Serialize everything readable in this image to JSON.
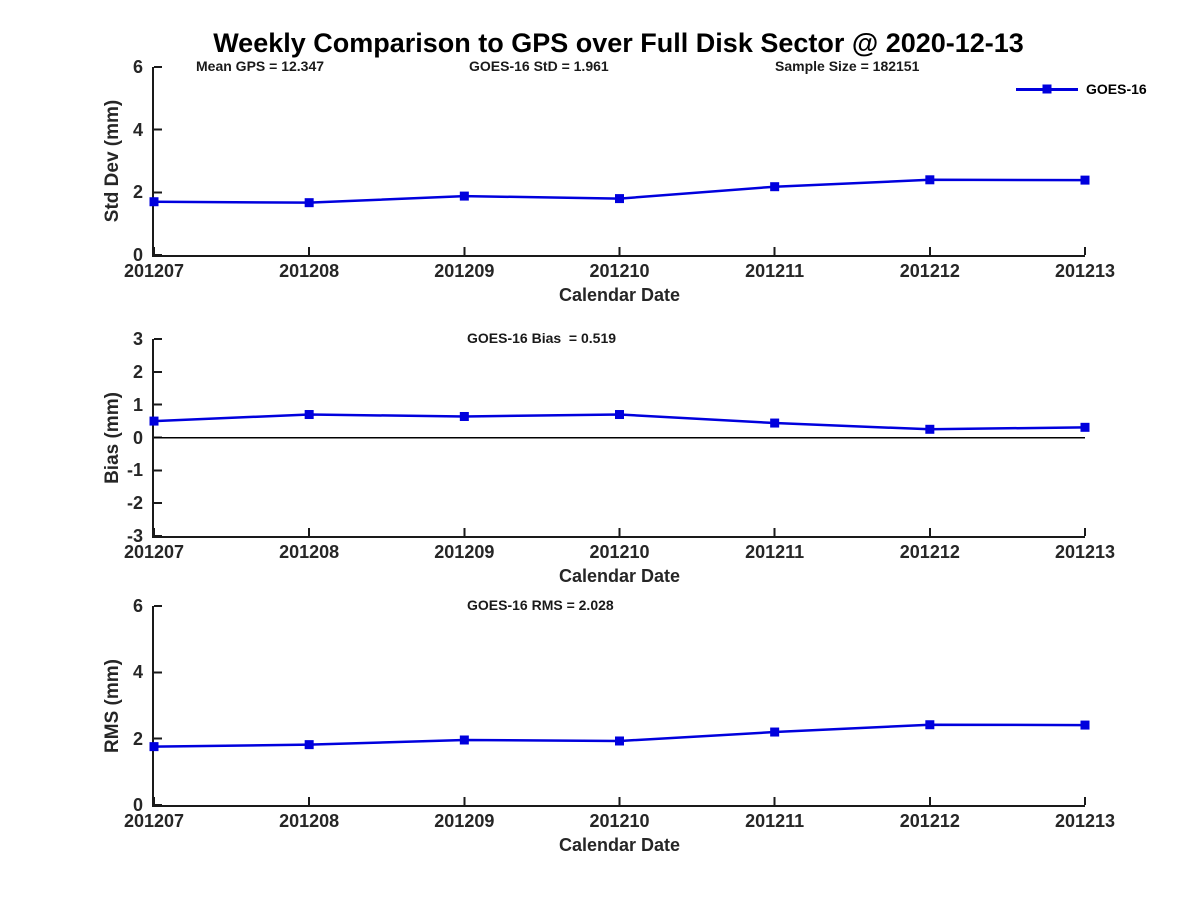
{
  "figure_title": "Weekly Comparison to GPS over Full Disk Sector @ 2020-12-13",
  "colors": {
    "series_blue": "#0000dd",
    "axis": "#1a1a1a",
    "zero_line": "#000000"
  },
  "legend": {
    "label": "GOES-16"
  },
  "chart_data": [
    {
      "type": "line",
      "ylabel": "Std Dev (mm)",
      "xlabel": "Calendar Date",
      "categories": [
        "201207",
        "201208",
        "201209",
        "201210",
        "201211",
        "201212",
        "201213"
      ],
      "series": [
        {
          "name": "GOES-16",
          "values": [
            1.7,
            1.67,
            1.88,
            1.8,
            2.18,
            2.4,
            2.39
          ]
        }
      ],
      "ylim": [
        0,
        6
      ],
      "yticks": [
        0,
        2,
        4,
        6
      ],
      "grid": false,
      "zero_line": false,
      "legend_position": "top-right",
      "annotations": [
        "Mean GPS = 12.347",
        "GOES-16 StD = 1.961",
        "Sample Size = 182151"
      ]
    },
    {
      "type": "line",
      "ylabel": "Bias (mm)",
      "xlabel": "Calendar Date",
      "categories": [
        "201207",
        "201208",
        "201209",
        "201210",
        "201211",
        "201212",
        "201213"
      ],
      "series": [
        {
          "name": "GOES-16",
          "values": [
            0.5,
            0.7,
            0.64,
            0.7,
            0.44,
            0.25,
            0.31
          ]
        }
      ],
      "ylim": [
        -3,
        3
      ],
      "yticks": [
        -3,
        -2,
        -1,
        0,
        1,
        2,
        3
      ],
      "grid": false,
      "zero_line": true,
      "legend_position": "none",
      "annotations": [
        "GOES-16 Bias  = 0.519"
      ]
    },
    {
      "type": "line",
      "ylabel": "RMS (mm)",
      "xlabel": "Calendar Date",
      "categories": [
        "201207",
        "201208",
        "201209",
        "201210",
        "201211",
        "201212",
        "201213"
      ],
      "series": [
        {
          "name": "GOES-16",
          "values": [
            1.76,
            1.82,
            1.96,
            1.93,
            2.2,
            2.42,
            2.41
          ]
        }
      ],
      "ylim": [
        0,
        6
      ],
      "yticks": [
        0,
        2,
        4,
        6
      ],
      "grid": false,
      "zero_line": false,
      "legend_position": "none",
      "annotations": [
        "GOES-16 RMS = 2.028"
      ]
    }
  ]
}
